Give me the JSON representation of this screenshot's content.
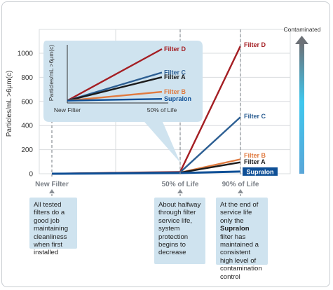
{
  "chart_data": {
    "type": "line",
    "ylabel": "Particles/mL >6μm(c)",
    "yticks": [
      0,
      200,
      400,
      600,
      800,
      1000
    ],
    "ylim": [
      0,
      1150
    ],
    "x_categories": [
      "New Filter",
      "50% of Life",
      "90% of Life"
    ],
    "grid": true,
    "series": [
      {
        "name": "Filter D",
        "color": "#a41e23",
        "values": [
          0,
          15,
          1060
        ]
      },
      {
        "name": "Filter C",
        "color": "#2d5f93",
        "values": [
          0,
          12,
          470
        ]
      },
      {
        "name": "Filter B",
        "color": "#e07a3f",
        "values": [
          0,
          10,
          120
        ]
      },
      {
        "name": "Filter A",
        "color": "#1b1b1b",
        "values": [
          0,
          9,
          95
        ]
      },
      {
        "name": "Supralon",
        "color": "#0e4f96",
        "values": [
          0,
          6,
          18
        ]
      }
    ],
    "scale_label": "Contaminated",
    "inset": {
      "ylabel": "Particles/mL >6μm(c)",
      "x_categories": [
        "New Filter",
        "50% of Life"
      ],
      "series": [
        {
          "name": "Filter D",
          "color": "#a41e23",
          "end": 1030
        },
        {
          "name": "Filter C",
          "color": "#2d5f93",
          "end": 830
        },
        {
          "name": "Filter A",
          "color": "#1b1b1b",
          "end": 790
        },
        {
          "name": "Filter B",
          "color": "#e07a3f",
          "end": 665
        },
        {
          "name": "Supralon",
          "color": "#0e4f96",
          "end": 605
        }
      ]
    }
  },
  "notes": {
    "n1": "All tested filters do a good job maintaining cleanliness when first installed",
    "n2": "About halfway through filter service life, system protection begins to decrease",
    "n3_pre": "At the end of service life only the ",
    "n3_bold": "Supralon",
    "n3_post": " filter has maintained a consistent high level of contamination control"
  }
}
